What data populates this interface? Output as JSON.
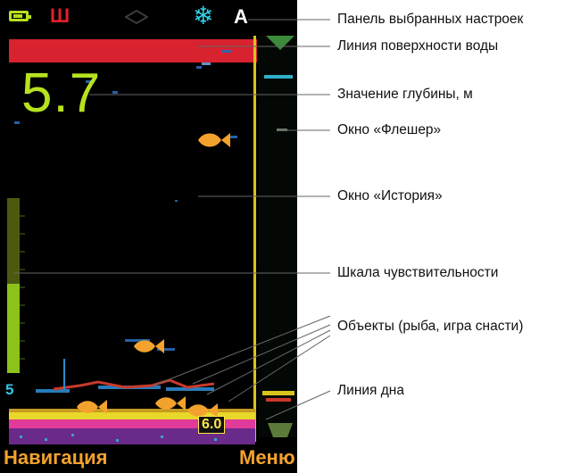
{
  "screen": {
    "status_bar": {
      "icons": [
        "battery-icon",
        "sh-icon",
        "fish-icon",
        "snowflake-icon"
      ],
      "sh_label": "Ш",
      "mode_label": "A"
    },
    "depth_value": "5.7",
    "scale_mark": "5",
    "bottom_depth_tag": "6.0",
    "softkeys": {
      "left_label": "Навигация",
      "right_label": "Меню"
    },
    "colors": {
      "accent_green": "#b6e21e",
      "surface_red": "#d8222f",
      "cursor_yellow": "#d8c41c",
      "fish_orange": "#f3a22d",
      "snow_cyan": "#31d1e6"
    }
  },
  "callouts": {
    "settings_panel": "Панель выбранных настроек",
    "surface_line": "Линия поверхности воды",
    "depth_value": "Значение глубины, м",
    "flasher_window": "Окно «Флешер»",
    "history_window": "Окно «История»",
    "sensitivity_scale": "Шкала чувствительности",
    "objects": "Объекты (рыба, игра снасти)",
    "bottom_line": "Линия дна"
  }
}
